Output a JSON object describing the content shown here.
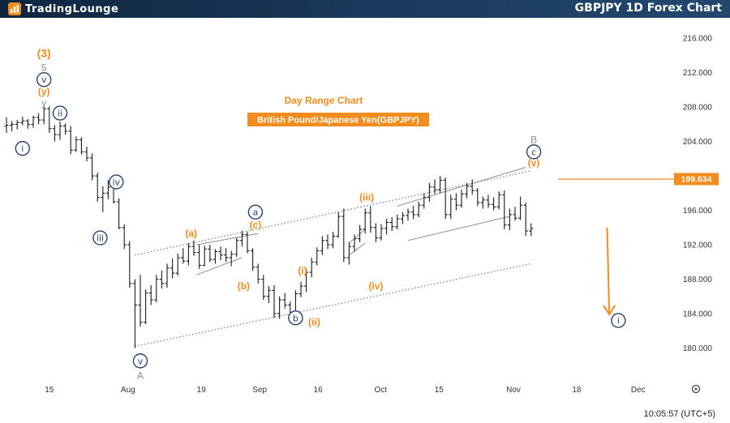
{
  "header": {
    "brand": "TradingLounge",
    "title": "GBPJPY 1D Forex Chart"
  },
  "chart_info": {
    "subtitle": "Day Range Chart",
    "instrument": "British Pound/Japanese Yen(GBPJPY)"
  },
  "footer": {
    "time": "10:05:57 (UTC+5)"
  },
  "colors": {
    "orange": "#f28c1e",
    "navy": "#2e4070",
    "gray": "#8b8f96",
    "price_badge": "#f28c1e"
  },
  "chart_data": {
    "type": "candlestick",
    "title": "GBPJPY 1D Forex Chart",
    "y_axis": {
      "min": 177.5,
      "max": 218,
      "ticks": [
        "216.000",
        "212.000",
        "208.000",
        "204.000",
        "196.000",
        "192.000",
        "188.000",
        "184.000",
        "180.000"
      ]
    },
    "x_axis": {
      "range": [
        0,
        128
      ],
      "ticks": [
        {
          "label": "15",
          "x": 8
        },
        {
          "label": "Aug",
          "x": 22.7
        },
        {
          "label": "19",
          "x": 36.4
        },
        {
          "label": "Sep",
          "x": 47.3
        },
        {
          "label": "16",
          "x": 58.2
        },
        {
          "label": "Oct",
          "x": 69.9
        },
        {
          "label": "15",
          "x": 80.8
        },
        {
          "label": "Nov",
          "x": 94.7
        },
        {
          "label": "18",
          "x": 106.5
        },
        {
          "label": "Dec",
          "x": 118
        }
      ]
    },
    "current_price": {
      "value": 199.634,
      "label": "199.634"
    },
    "bars": [
      [
        205.8,
        206.8,
        205.0,
        205.9
      ],
      [
        205.9,
        206.4,
        205.2,
        206.0
      ],
      [
        206.0,
        206.5,
        205.4,
        206.2
      ],
      [
        206.2,
        206.9,
        205.9,
        206.4
      ],
      [
        206.4,
        206.6,
        205.5,
        206.0
      ],
      [
        206.0,
        207.0,
        205.6,
        206.8
      ],
      [
        206.8,
        207.3,
        206.0,
        206.5
      ],
      [
        206.5,
        208.2,
        206.0,
        207.8
      ],
      [
        207.8,
        208.1,
        205.0,
        205.5
      ],
      [
        205.5,
        205.9,
        204.0,
        204.8
      ],
      [
        204.8,
        206.3,
        204.2,
        205.8
      ],
      [
        205.8,
        206.1,
        204.8,
        205.2
      ],
      [
        205.2,
        205.8,
        202.5,
        203.0
      ],
      [
        203.0,
        204.6,
        202.8,
        204.2
      ],
      [
        204.2,
        204.5,
        202.5,
        202.8
      ],
      [
        202.8,
        203.4,
        201.7,
        202.1
      ],
      [
        202.1,
        202.6,
        199.5,
        200.0
      ],
      [
        200.0,
        200.4,
        197.0,
        197.5
      ],
      [
        197.5,
        198.8,
        195.8,
        198.0
      ],
      [
        198.0,
        199.5,
        197.3,
        198.7
      ],
      [
        198.7,
        199.8,
        196.8,
        197.0
      ],
      [
        197.0,
        197.4,
        193.8,
        194.0
      ],
      [
        194.0,
        194.4,
        191.5,
        192.0
      ],
      [
        192.0,
        192.4,
        187.0,
        187.5
      ],
      [
        187.5,
        188.0,
        180.0,
        185.0
      ],
      [
        185.0,
        188.5,
        182.5,
        183.0
      ],
      [
        183.0,
        186.8,
        182.8,
        186.4
      ],
      [
        186.4,
        187.3,
        185.0,
        185.6
      ],
      [
        185.6,
        188.5,
        185.3,
        188.0
      ],
      [
        188.0,
        189.0,
        186.9,
        187.5
      ],
      [
        187.5,
        189.8,
        187.0,
        189.3
      ],
      [
        189.3,
        190.4,
        188.1,
        188.7
      ],
      [
        188.7,
        191.0,
        188.4,
        190.5
      ],
      [
        190.5,
        191.6,
        189.8,
        190.1
      ],
      [
        190.1,
        192.2,
        189.6,
        191.8
      ],
      [
        191.8,
        192.5,
        190.7,
        191.1
      ],
      [
        191.1,
        192.0,
        189.2,
        189.6
      ],
      [
        189.6,
        191.9,
        189.5,
        191.5
      ],
      [
        191.5,
        192.0,
        190.0,
        190.3
      ],
      [
        190.3,
        191.5,
        189.8,
        191.2
      ],
      [
        191.2,
        191.8,
        190.2,
        190.8
      ],
      [
        190.8,
        191.6,
        190.0,
        190.5
      ],
      [
        190.5,
        191.3,
        189.5,
        190.9
      ],
      [
        190.9,
        192.8,
        190.6,
        192.5
      ],
      [
        192.5,
        193.6,
        191.8,
        193.2
      ],
      [
        193.2,
        193.5,
        191.0,
        191.3
      ],
      [
        191.3,
        191.6,
        189.0,
        189.4
      ],
      [
        189.4,
        189.8,
        187.5,
        188.0
      ],
      [
        188.0,
        188.5,
        185.6,
        186.0
      ],
      [
        186.0,
        187.2,
        185.2,
        186.7
      ],
      [
        186.7,
        187.3,
        183.5,
        184.0
      ],
      [
        184.0,
        186.0,
        183.4,
        185.6
      ],
      [
        185.6,
        186.4,
        184.6,
        185.0
      ],
      [
        185.0,
        185.4,
        183.2,
        183.6
      ],
      [
        183.6,
        186.7,
        183.4,
        186.3
      ],
      [
        186.3,
        187.7,
        185.9,
        187.2
      ],
      [
        187.2,
        189.2,
        186.5,
        188.8
      ],
      [
        188.8,
        190.5,
        188.2,
        190.0
      ],
      [
        190.0,
        191.7,
        189.6,
        191.3
      ],
      [
        191.3,
        193.0,
        190.8,
        192.5
      ],
      [
        192.5,
        193.2,
        191.5,
        192.0
      ],
      [
        192.0,
        193.5,
        191.6,
        193.0
      ],
      [
        193.0,
        195.8,
        192.8,
        195.3
      ],
      [
        195.3,
        196.2,
        190.0,
        190.5
      ],
      [
        190.5,
        192.3,
        189.7,
        191.8
      ],
      [
        191.8,
        193.2,
        191.2,
        192.7
      ],
      [
        192.7,
        194.3,
        192.3,
        193.8
      ],
      [
        193.8,
        196.2,
        193.3,
        195.7
      ],
      [
        195.7,
        196.5,
        193.4,
        194.0
      ],
      [
        194.0,
        194.5,
        192.3,
        192.8
      ],
      [
        192.8,
        194.4,
        192.5,
        193.9
      ],
      [
        193.9,
        195.0,
        193.2,
        194.6
      ],
      [
        194.6,
        195.2,
        193.6,
        194.1
      ],
      [
        194.1,
        195.5,
        193.8,
        195.0
      ],
      [
        195.0,
        195.8,
        194.4,
        195.4
      ],
      [
        195.4,
        196.2,
        194.8,
        195.8
      ],
      [
        195.8,
        196.5,
        195.0,
        195.5
      ],
      [
        195.5,
        197.0,
        195.2,
        196.6
      ],
      [
        196.6,
        198.0,
        196.2,
        197.5
      ],
      [
        197.5,
        199.2,
        197.0,
        198.7
      ],
      [
        198.7,
        199.6,
        197.9,
        198.4
      ],
      [
        198.4,
        200.0,
        198.0,
        199.5
      ],
      [
        199.5,
        199.8,
        195.0,
        195.5
      ],
      [
        195.5,
        197.8,
        195.0,
        197.3
      ],
      [
        197.3,
        198.0,
        196.0,
        196.6
      ],
      [
        196.6,
        198.4,
        196.3,
        197.9
      ],
      [
        197.9,
        199.2,
        197.4,
        198.8
      ],
      [
        198.8,
        199.6,
        197.8,
        198.3
      ],
      [
        198.3,
        198.6,
        196.5,
        196.9
      ],
      [
        196.9,
        197.6,
        196.2,
        197.2
      ],
      [
        197.2,
        197.8,
        196.3,
        196.7
      ],
      [
        196.7,
        197.5,
        196.0,
        196.4
      ],
      [
        196.4,
        198.2,
        196.1,
        197.8
      ],
      [
        197.8,
        198.3,
        193.8,
        194.3
      ],
      [
        194.3,
        196.2,
        193.7,
        195.5
      ],
      [
        195.5,
        196.4,
        194.8,
        195.1
      ],
      [
        195.1,
        197.6,
        194.9,
        196.6
      ],
      [
        196.6,
        196.9,
        193.0,
        193.6
      ],
      [
        193.6,
        194.5,
        193.0,
        193.9
      ]
    ],
    "channels": [
      {
        "name": "lower-channel",
        "color": "#7a80b8",
        "style": "dotted",
        "points": [
          [
            24,
            180.2
          ],
          [
            98,
            189.8
          ]
        ]
      },
      {
        "name": "upper-channel",
        "color": "#7a80b8",
        "style": "dotted",
        "points": [
          [
            24,
            190.8
          ],
          [
            98,
            200.6
          ]
        ]
      },
      {
        "name": "triangle-upper",
        "color": "#9aa0a8",
        "style": "solid",
        "points": [
          [
            35.5,
            192.0
          ],
          [
            47,
            193.3
          ]
        ]
      },
      {
        "name": "triangle-lower",
        "color": "#9aa0a8",
        "style": "solid",
        "points": [
          [
            35.5,
            188.5
          ],
          [
            44,
            190.5
          ]
        ]
      },
      {
        "name": "wedge-upper",
        "color": "#9aa0a8",
        "style": "solid",
        "points": [
          [
            73,
            196.5
          ],
          [
            97,
            201.0
          ]
        ]
      },
      {
        "name": "wedge-lower",
        "color": "#9aa0a8",
        "style": "solid",
        "points": [
          [
            75,
            192.5
          ],
          [
            94,
            195.3
          ]
        ]
      },
      {
        "name": "flag-upper",
        "color": "#9aa0a8",
        "style": "solid",
        "points": [
          [
            64,
            192.2
          ],
          [
            67,
            193.8
          ]
        ]
      },
      {
        "name": "flag-lower",
        "color": "#9aa0a8",
        "style": "solid",
        "points": [
          [
            64,
            190.8
          ],
          [
            67,
            192.2
          ]
        ]
      },
      {
        "name": "resistance-line",
        "color": "#f28c1e",
        "style": "solid",
        "points": [
          [
            103,
            199.634
          ],
          [
            128,
            199.634
          ]
        ]
      }
    ],
    "projection_arrow": {
      "from": [
        112.2,
        194.0
      ],
      "to": [
        112.6,
        183.9
      ],
      "color": "#f28c1e"
    },
    "wave_labels": [
      {
        "text": "(3)",
        "style": "text-orange",
        "x": 7,
        "y": 214.2
      },
      {
        "text": "5",
        "style": "text-gray",
        "x": 7,
        "y": 212.6
      },
      {
        "text": "v",
        "style": "circle-navy",
        "x": 7,
        "y": 211.2
      },
      {
        "text": "(y)",
        "style": "text-orange",
        "x": 7,
        "y": 209.8
      },
      {
        "text": "y",
        "style": "text-gray",
        "x": 7,
        "y": 208.5
      },
      {
        "text": "ii",
        "style": "circle-navy",
        "x": 10,
        "y": 207.3
      },
      {
        "text": "i",
        "style": "circle-navy",
        "x": 3,
        "y": 203.2
      },
      {
        "text": "iv",
        "style": "circle-navy",
        "x": 20.5,
        "y": 199.3
      },
      {
        "text": "iii",
        "style": "circle-navy",
        "x": 17.5,
        "y": 192.8
      },
      {
        "text": "v",
        "style": "circle-navy",
        "x": 25,
        "y": 178.5
      },
      {
        "text": "A",
        "style": "text-gray",
        "x": 25,
        "y": 176.8
      },
      {
        "text": "(a)",
        "style": "text-orange",
        "x": 34.5,
        "y": 193.3
      },
      {
        "text": "(b)",
        "style": "text-orange",
        "x": 44.3,
        "y": 187.2
      },
      {
        "text": "a",
        "style": "circle-navy",
        "x": 46.5,
        "y": 195.8
      },
      {
        "text": "(c)",
        "style": "text-orange",
        "x": 46.5,
        "y": 194.3
      },
      {
        "text": "b",
        "style": "circle-navy",
        "x": 54,
        "y": 183.5
      },
      {
        "text": "(i)",
        "style": "text-orange",
        "x": 55.3,
        "y": 189.0
      },
      {
        "text": "(ii)",
        "style": "text-orange",
        "x": 57.5,
        "y": 183.0
      },
      {
        "text": "(iii)",
        "style": "text-orange",
        "x": 67.3,
        "y": 197.5
      },
      {
        "text": "(iv)",
        "style": "text-orange",
        "x": 69,
        "y": 187.2
      },
      {
        "text": "B",
        "style": "text-gray",
        "x": 98.5,
        "y": 204.2
      },
      {
        "text": "c",
        "style": "circle-navy",
        "x": 98.5,
        "y": 202.8
      },
      {
        "text": "(v)",
        "style": "text-orange",
        "x": 98.5,
        "y": 201.5
      },
      {
        "text": "i",
        "style": "circle-navy",
        "x": 114.3,
        "y": 183.2
      }
    ]
  }
}
